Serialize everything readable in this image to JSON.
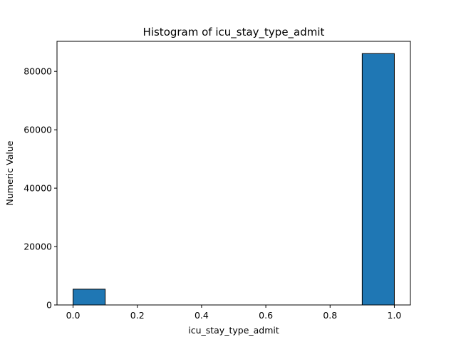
{
  "chart_data": {
    "type": "bar",
    "title": "Histogram of icu_stay_type_admit",
    "xlabel": "icu_stay_type_admit",
    "ylabel": "Numeric Value",
    "xlim": [
      -0.05,
      1.05
    ],
    "ylim": [
      0,
      90300
    ],
    "x_ticks": [
      0.0,
      0.2,
      0.4,
      0.6,
      0.8,
      1.0
    ],
    "x_tick_labels": [
      "0.0",
      "0.2",
      "0.4",
      "0.6",
      "0.8",
      "1.0"
    ],
    "y_ticks": [
      0,
      20000,
      40000,
      60000,
      80000
    ],
    "y_tick_labels": [
      "0",
      "20000",
      "40000",
      "60000",
      "80000"
    ],
    "bins": [
      {
        "x0": 0.0,
        "x1": 0.1,
        "count": 5400
      },
      {
        "x0": 0.1,
        "x1": 0.2,
        "count": 0
      },
      {
        "x0": 0.2,
        "x1": 0.3,
        "count": 0
      },
      {
        "x0": 0.3,
        "x1": 0.4,
        "count": 0
      },
      {
        "x0": 0.4,
        "x1": 0.5,
        "count": 0
      },
      {
        "x0": 0.5,
        "x1": 0.6,
        "count": 0
      },
      {
        "x0": 0.6,
        "x1": 0.7,
        "count": 0
      },
      {
        "x0": 0.7,
        "x1": 0.8,
        "count": 0
      },
      {
        "x0": 0.8,
        "x1": 0.9,
        "count": 0
      },
      {
        "x0": 0.9,
        "x1": 1.0,
        "count": 86100
      }
    ],
    "bar_color": "#1f77b4",
    "bar_edge_color": "#000000",
    "grid": false,
    "legend": "none"
  }
}
